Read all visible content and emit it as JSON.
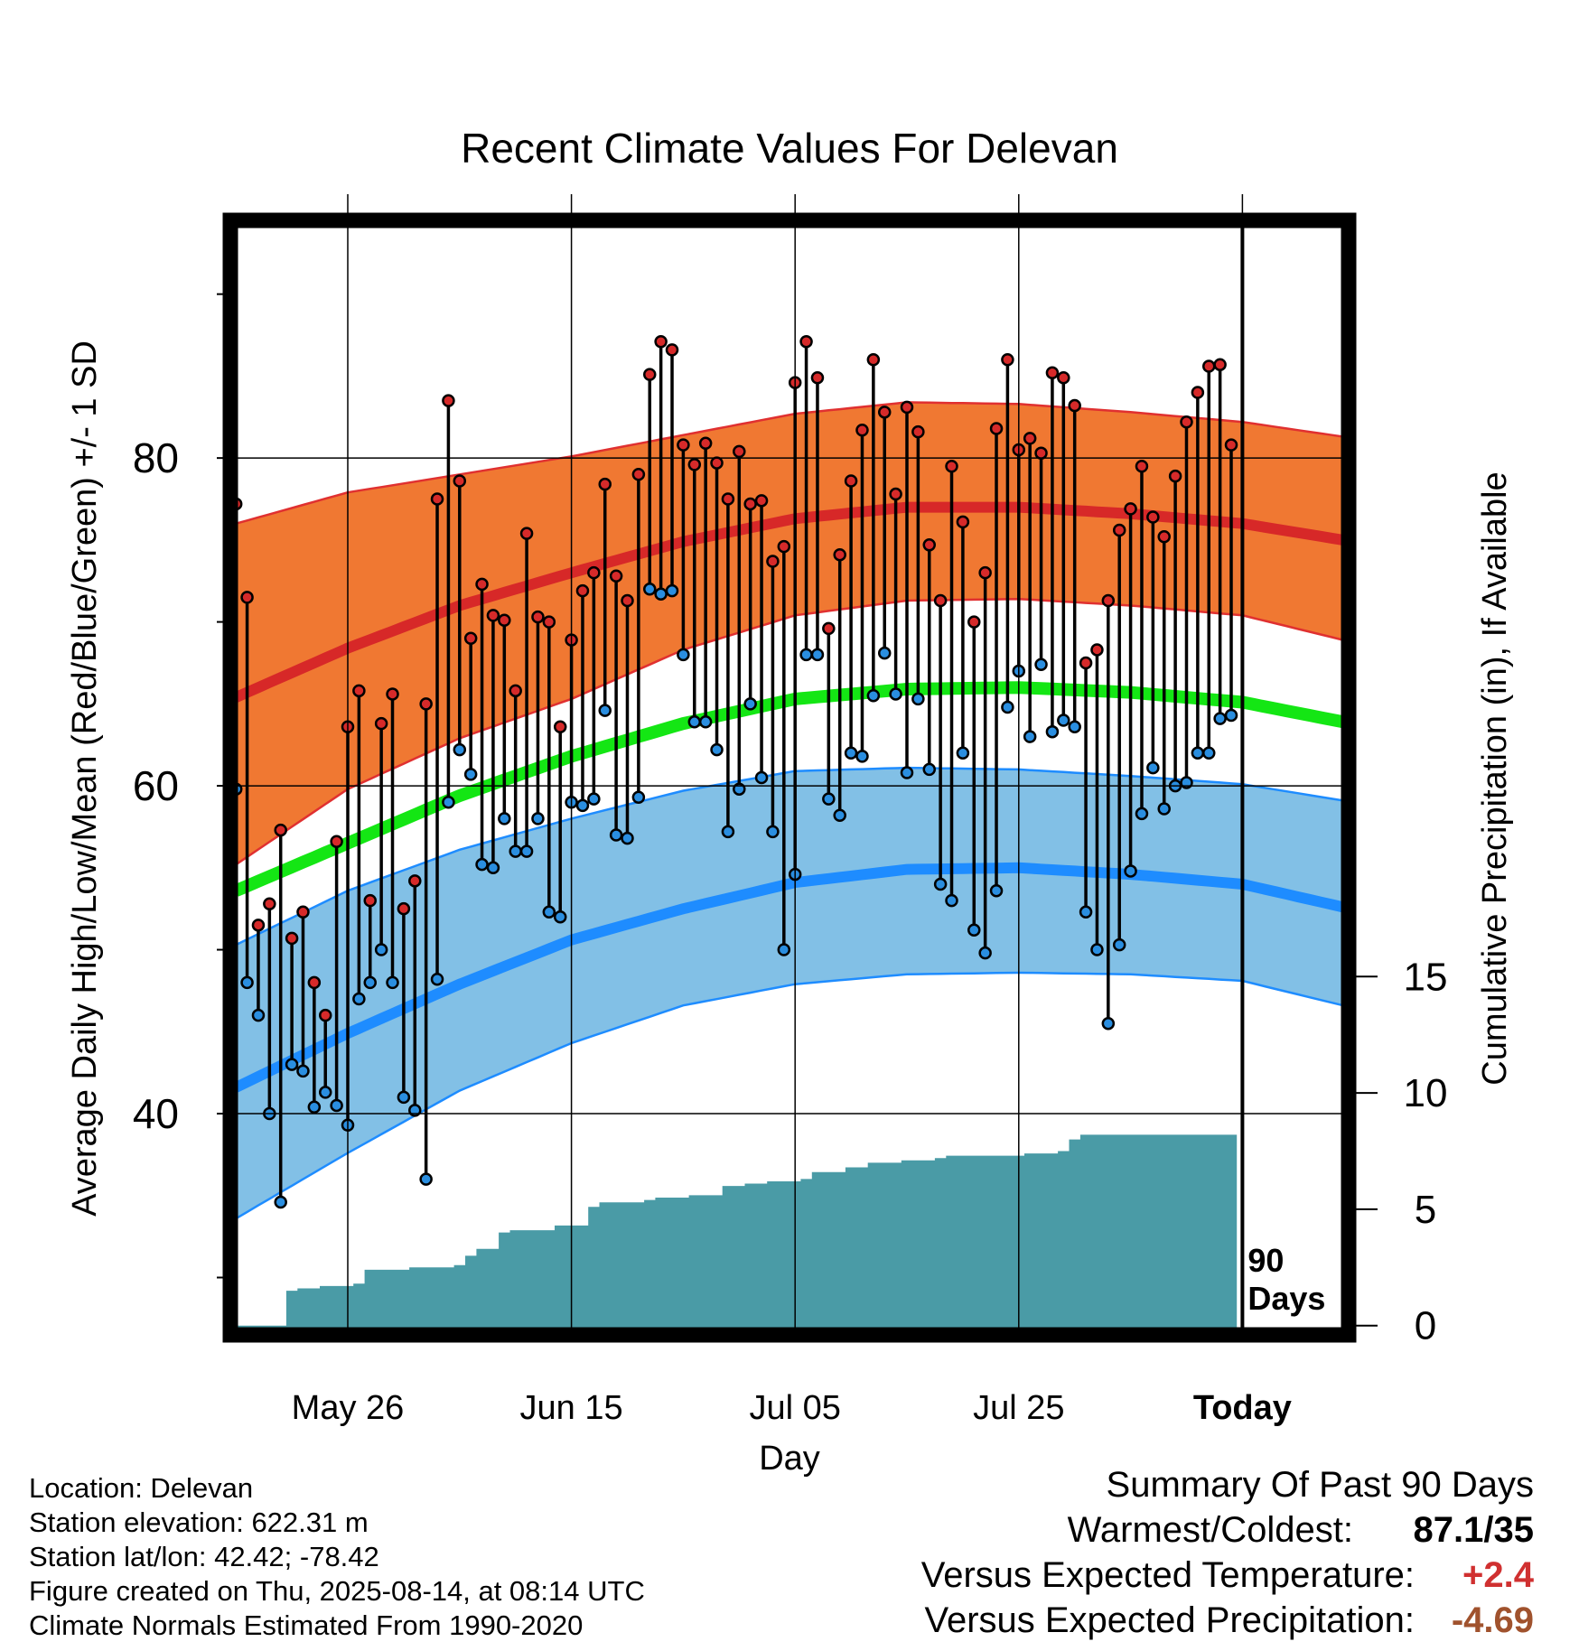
{
  "chart_data": {
    "type": "line",
    "title": "Recent Climate Values For Delevan",
    "xlabel": "Day",
    "ylabel_left": "Average Daily High/Low/Mean (Red/Blue/Green) +/- 1 SD",
    "ylabel_right": "Cumulative Precipitation (in), If Available",
    "x_tick_labels": [
      "May 26",
      "Jun 15",
      "Jul 05",
      "Jul 25",
      "Today"
    ],
    "x_tick_days": [
      10,
      30,
      50,
      70,
      90
    ],
    "x_range_days": [
      -0.5,
      99.5
    ],
    "y_left_range": [
      26.5,
      94.5
    ],
    "y_left_ticks": [
      40,
      60,
      80
    ],
    "y_right_range": [
      -0.4,
      47.5
    ],
    "y_right_ticks": [
      0,
      5,
      10,
      15
    ],
    "today_marker_label": "90\nDays",
    "colors": {
      "high_band": "#f07832",
      "high_mean": "#d72828",
      "high_band_edge": "#e03030",
      "low_band": "#82c0e6",
      "low_mean": "#1e8cff",
      "low_band_edge": "#1e8cff",
      "mean": "#14e614",
      "precip": "#4a9ba6",
      "high_marker": "#d62a2a",
      "low_marker": "#2a8ee0"
    },
    "normals": {
      "days": [
        0,
        10,
        20,
        30,
        40,
        50,
        60,
        70,
        80,
        90,
        99
      ],
      "high_mean": [
        65.4,
        68.4,
        71.0,
        73.0,
        74.9,
        76.3,
        77.0,
        77.0,
        76.6,
        76.0,
        75.0
      ],
      "high_plus_sd": [
        76.0,
        77.9,
        79.0,
        80.1,
        81.4,
        82.7,
        83.4,
        83.3,
        82.8,
        82.2,
        81.3
      ],
      "high_minus_sd": [
        55.2,
        59.8,
        62.9,
        65.3,
        68.3,
        70.4,
        71.3,
        71.4,
        71.0,
        70.4,
        68.9
      ],
      "low_mean": [
        41.6,
        44.9,
        47.9,
        50.6,
        52.5,
        54.1,
        54.9,
        55.0,
        54.6,
        54.0,
        52.6
      ],
      "low_plus_sd": [
        50.3,
        53.6,
        56.1,
        58.0,
        59.7,
        60.9,
        61.1,
        61.0,
        60.6,
        60.1,
        59.1
      ],
      "low_minus_sd": [
        33.6,
        37.6,
        41.4,
        44.3,
        46.6,
        47.9,
        48.5,
        48.6,
        48.5,
        48.1,
        46.6
      ],
      "mean": [
        53.6,
        56.5,
        59.4,
        61.8,
        63.8,
        65.3,
        65.9,
        66.0,
        65.7,
        65.1,
        63.9
      ]
    },
    "daily": {
      "days": [
        0,
        1,
        2,
        3,
        4,
        5,
        6,
        7,
        8,
        9,
        10,
        11,
        12,
        13,
        14,
        15,
        16,
        17,
        18,
        19,
        20,
        21,
        22,
        23,
        24,
        25,
        26,
        27,
        28,
        29,
        30,
        31,
        32,
        33,
        34,
        35,
        36,
        37,
        38,
        39,
        40,
        41,
        42,
        43,
        44,
        45,
        46,
        47,
        48,
        49,
        50,
        51,
        52,
        53,
        54,
        55,
        56,
        57,
        58,
        59,
        60,
        61,
        62,
        63,
        64,
        65,
        66,
        67,
        68,
        69,
        70,
        71,
        72,
        73,
        74,
        75,
        76,
        77,
        78,
        79,
        80,
        81,
        82,
        83,
        84,
        85,
        86,
        87,
        88,
        89
      ],
      "high": [
        77.2,
        71.5,
        51.5,
        52.8,
        57.3,
        50.7,
        52.3,
        48.0,
        46.0,
        56.6,
        63.6,
        65.8,
        53.0,
        63.8,
        65.6,
        52.5,
        54.2,
        65.0,
        77.5,
        83.5,
        78.6,
        69.0,
        72.3,
        70.4,
        70.1,
        65.8,
        75.4,
        70.3,
        70.0,
        63.6,
        68.9,
        71.9,
        73.0,
        78.4,
        72.8,
        71.3,
        79.0,
        85.1,
        87.1,
        86.6,
        80.8,
        79.6,
        80.9,
        79.7,
        77.5,
        80.4,
        77.2,
        77.4,
        73.7,
        74.6,
        84.6,
        87.1,
        84.9,
        69.6,
        74.1,
        78.6,
        81.7,
        86.0,
        82.8,
        77.8,
        83.1,
        81.6,
        74.7,
        71.3,
        79.5,
        76.1,
        70.0,
        73.0,
        81.8,
        86.0,
        80.5,
        81.2,
        80.3,
        85.2,
        84.9,
        83.2,
        67.5,
        68.3,
        71.3,
        75.6,
        76.9,
        79.5,
        76.4,
        75.2,
        78.9,
        82.2,
        84.0,
        85.6,
        85.7,
        80.8
      ],
      "low": [
        59.8,
        48.0,
        46.0,
        40.0,
        34.6,
        43.0,
        42.6,
        40.4,
        41.3,
        40.5,
        39.3,
        47.0,
        48.0,
        50.0,
        48.0,
        41.0,
        40.2,
        36.0,
        48.2,
        59.0,
        62.2,
        60.7,
        55.2,
        55.0,
        58.0,
        56.0,
        56.0,
        58.0,
        52.3,
        52.0,
        59.0,
        58.8,
        59.2,
        64.6,
        57.0,
        56.8,
        59.3,
        72.0,
        71.7,
        71.9,
        68.0,
        63.9,
        63.9,
        62.2,
        57.2,
        59.8,
        65.0,
        60.5,
        57.2,
        50.0,
        54.6,
        68.0,
        68.0,
        59.2,
        58.2,
        62.0,
        61.8,
        65.5,
        68.1,
        65.6,
        60.8,
        65.3,
        61.0,
        54.0,
        53.0,
        62.0,
        51.2,
        49.8,
        53.6,
        64.8,
        67.0,
        63.0,
        67.4,
        63.3,
        64.0,
        63.6,
        52.3,
        50.0,
        45.5,
        50.3,
        54.8,
        58.3,
        61.1,
        58.6,
        60.0,
        60.2,
        62.0,
        62.0,
        64.1,
        64.3
      ]
    },
    "cumulative_precip": {
      "days": [
        0,
        4,
        5,
        6,
        8,
        11,
        12,
        16,
        20,
        21,
        22,
        24,
        25,
        29,
        32,
        33,
        37,
        38,
        41,
        44,
        46,
        48,
        51,
        52,
        55,
        57,
        60,
        63,
        64,
        67,
        70,
        71,
        74,
        75,
        76,
        89
      ],
      "values": [
        0,
        0,
        1.5,
        1.6,
        1.7,
        1.8,
        2.4,
        2.5,
        2.6,
        3.0,
        3.3,
        4.0,
        4.1,
        4.3,
        5.1,
        5.3,
        5.4,
        5.5,
        5.6,
        6.0,
        6.1,
        6.2,
        6.3,
        6.6,
        6.8,
        7.0,
        7.1,
        7.2,
        7.3,
        7.3,
        7.3,
        7.4,
        7.5,
        8.0,
        8.2,
        8.2
      ]
    }
  },
  "info": {
    "location": "Location: Delevan",
    "elevation": "Station elevation: 622.31 m",
    "latlon": "Station lat/lon: 42.42; -78.42",
    "created": "Figure created on Thu, 2025-08-14, at 08:14 UTC",
    "normals": "Climate Normals Estimated From 1990-2020"
  },
  "summary": {
    "title": "Summary Of Past 90 Days",
    "warmest_label": "Warmest/Coldest:",
    "warmest_value": "87.1/35",
    "temp_label": "Versus Expected Temperature:",
    "temp_value": "+2.4",
    "temp_color": "#d03030",
    "precip_label": "Versus Expected Precipitation:",
    "precip_value": "-4.69",
    "precip_color": "#a0522d"
  }
}
